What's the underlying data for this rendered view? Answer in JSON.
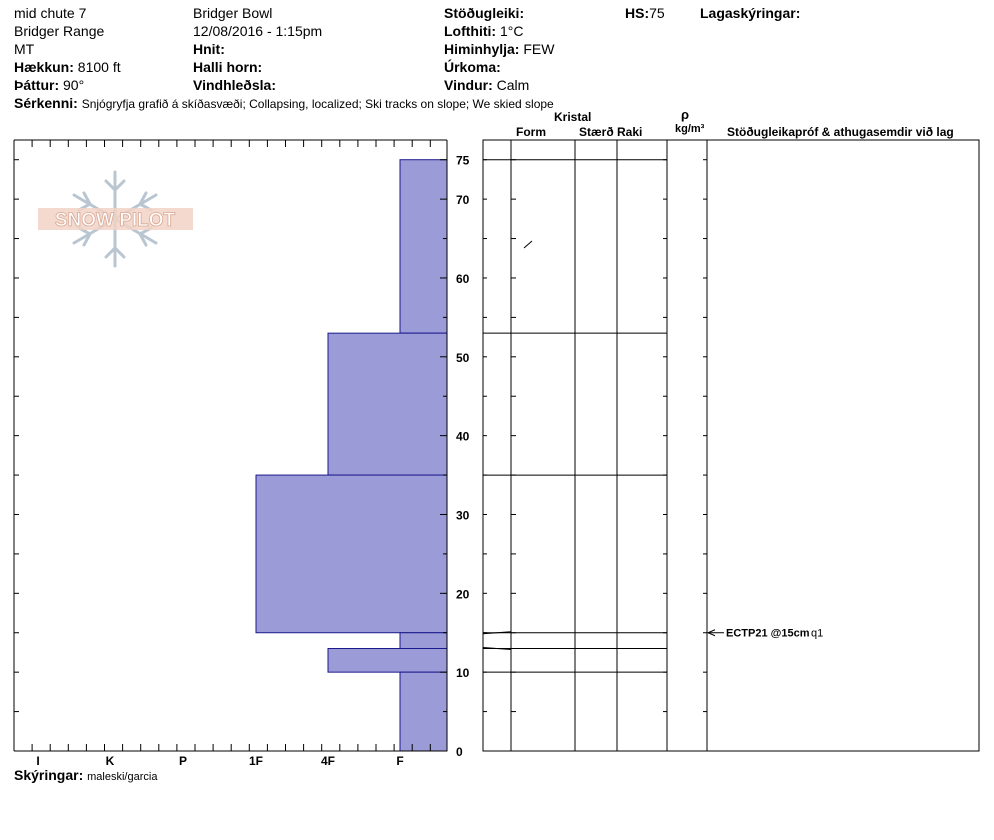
{
  "header": {
    "location": "mid chute 7",
    "range": "Bridger Range",
    "state": "MT",
    "elevation_label": "Hækkun:",
    "elevation_value": "8100 ft",
    "aspect_label": "Þáttur:",
    "aspect_value": "90°",
    "area": "Bridger Bowl",
    "datetime": "12/08/2016 - 1:15pm",
    "coords_label": "Hnit:",
    "slope_label": "Halli horn:",
    "wind_loading_label": "Vindhleðsla:",
    "stability_label": "Stöðugleiki:",
    "air_temp_label": "Lofthiti:",
    "air_temp_value": "1°C",
    "sky_label": "Himinhylja:",
    "sky_value": "FEW",
    "precip_label": "Úrkoma:",
    "wind_label": "Vindur:",
    "wind_value": "Calm",
    "hs_label": "HS:",
    "hs_value": "75",
    "layer_notes_label": "Lagaskýringar:",
    "features_label": "Sérkenni:",
    "features_value": "Snjógryfja grafið á skíðasvæði; Collapsing, localized; Ski tracks on slope; We skied slope"
  },
  "columns": {
    "crystal": "Kristal",
    "form": "Form",
    "size": "Stærð",
    "moisture": "Raki",
    "rho": "ρ",
    "density_unit": "kg/m³",
    "stability_comments": "Stöðugleikapróf & athugasemdir við lag"
  },
  "logo_text": "SNOW PILOT",
  "footer": {
    "observers_label": "Skýringar:",
    "observers_value": "maleski/garcia"
  },
  "colors": {
    "hardness_fill": "#9b9bd7",
    "hardness_stroke": "#1a1a8c"
  },
  "chart_data": {
    "type": "bar",
    "orientation": "horizontal",
    "title": "",
    "x_categories": [
      "I",
      "K",
      "P",
      "1F",
      "4F",
      "F"
    ],
    "y_ticks": [
      0,
      10,
      20,
      30,
      40,
      50,
      60,
      70,
      75
    ],
    "ylim": [
      0,
      75
    ],
    "layers": [
      {
        "top": 75,
        "bottom": 53,
        "hardness": "F"
      },
      {
        "top": 53,
        "bottom": 35,
        "hardness": "4F"
      },
      {
        "top": 35,
        "bottom": 15,
        "hardness": "1F"
      },
      {
        "top": 15,
        "bottom": 13,
        "hardness": "F"
      },
      {
        "top": 13,
        "bottom": 10,
        "hardness": "4F"
      },
      {
        "top": 10,
        "bottom": 0,
        "hardness": "F"
      }
    ],
    "layer_boundaries": [
      75,
      53,
      35,
      15,
      13,
      10
    ],
    "test_results": [
      {
        "depth": 15,
        "test": "ECTP21 @15cm",
        "quality": "q1"
      }
    ]
  }
}
